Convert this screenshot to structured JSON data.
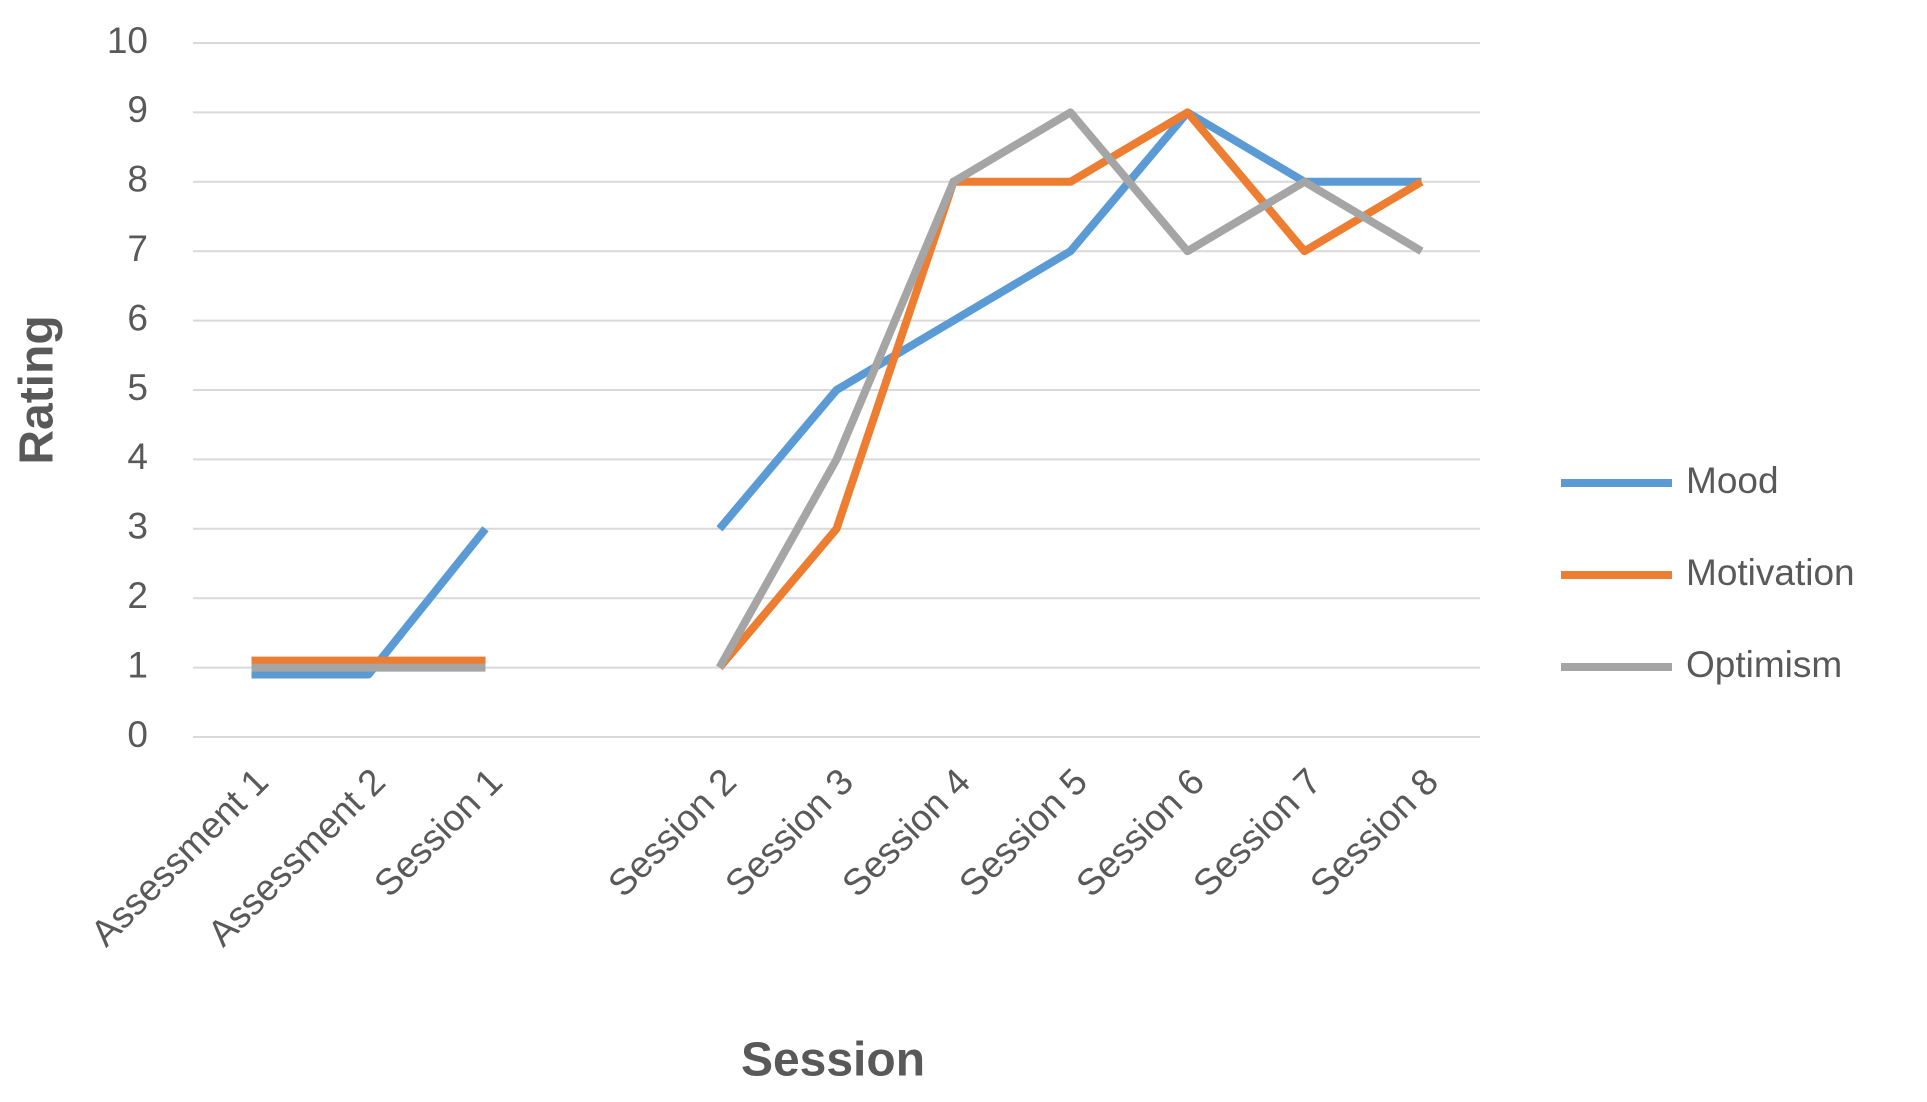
{
  "chart_data": {
    "type": "line",
    "categories": [
      "Assessment 1",
      "Assessment 2",
      "Session 1",
      null,
      "Session 2",
      "Session 3",
      "Session 4",
      "Session 5",
      "Session 6",
      "Session 7",
      "Session 8"
    ],
    "series": [
      {
        "name": "Mood",
        "color": "#5b9bd5",
        "values": [
          0.9,
          0.9,
          3,
          null,
          3,
          5,
          6,
          7,
          9,
          8,
          8
        ]
      },
      {
        "name": "Motivation",
        "color": "#ed7d31",
        "values": [
          1.1,
          1.1,
          1.1,
          null,
          1,
          3,
          8,
          8,
          9,
          7,
          8
        ]
      },
      {
        "name": "Optimism",
        "color": "#a5a5a5",
        "values": [
          1,
          1,
          1,
          null,
          1,
          4,
          8,
          9,
          7,
          8,
          7
        ]
      }
    ],
    "ylim": [
      0,
      10
    ],
    "yticks": [
      0,
      1,
      2,
      3,
      4,
      5,
      6,
      7,
      8,
      9,
      10
    ],
    "grid": true,
    "x_label": "Session",
    "y_label": "Rating",
    "legend": "right"
  }
}
